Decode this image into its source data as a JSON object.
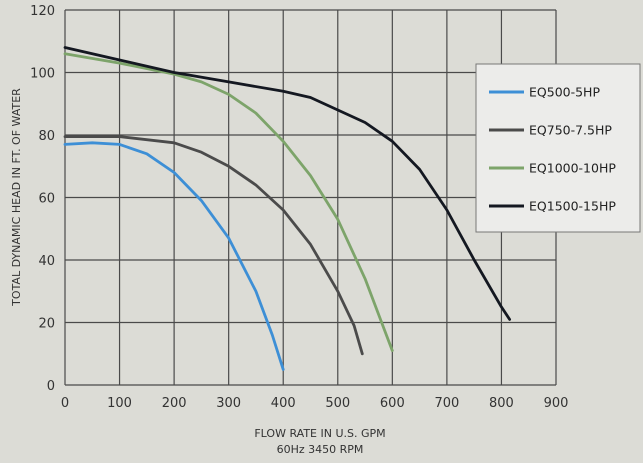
{
  "chart_data": {
    "type": "line",
    "title": "",
    "xlabel": "FLOW RATE IN U.S. GPM",
    "xlabel_sub": "60Hz 3450 RPM",
    "ylabel": "TOTAL DYNAMIC HEAD IN FT. OF WATER",
    "xlim": [
      0,
      900
    ],
    "ylim": [
      0,
      120
    ],
    "xticks": [
      0,
      100,
      200,
      300,
      400,
      500,
      600,
      700,
      800,
      900
    ],
    "yticks": [
      0,
      20,
      40,
      60,
      80,
      100,
      120
    ],
    "grid": true,
    "legend_position": "right",
    "background_color": "#dcdcd6",
    "grid_color": "#4a4a4a",
    "series": [
      {
        "name": "EQ500-5HP",
        "color": "#3d8fd6",
        "x": [
          0,
          50,
          100,
          150,
          200,
          250,
          300,
          350,
          380,
          400
        ],
        "y": [
          77,
          77.5,
          77,
          74,
          68,
          59,
          47,
          30,
          16,
          5
        ]
      },
      {
        "name": "EQ750-7.5HP",
        "color": "#4b4b4b",
        "x": [
          0,
          100,
          200,
          250,
          300,
          350,
          400,
          450,
          500,
          530,
          545
        ],
        "y": [
          79.5,
          79.5,
          77.5,
          74.5,
          70,
          64,
          56,
          45,
          30,
          19,
          10
        ]
      },
      {
        "name": "EQ1000-10HP",
        "color": "#7da46a",
        "x": [
          0,
          100,
          200,
          250,
          300,
          350,
          400,
          450,
          500,
          550,
          600
        ],
        "y": [
          106,
          103,
          99.5,
          97,
          93,
          87,
          78,
          67,
          53,
          34,
          11
        ]
      },
      {
        "name": "EQ1500-15HP",
        "color": "#141821",
        "x": [
          0,
          100,
          200,
          300,
          400,
          450,
          500,
          550,
          600,
          650,
          700,
          750,
          800,
          815
        ],
        "y": [
          108,
          104,
          100,
          97,
          94,
          92,
          88,
          84,
          78,
          69,
          56,
          40,
          25,
          21
        ]
      }
    ]
  }
}
